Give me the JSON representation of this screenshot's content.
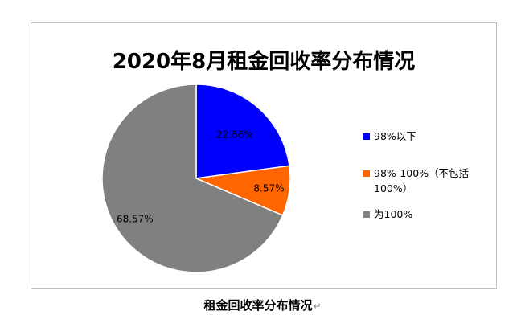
{
  "chart_data": {
    "type": "pie",
    "title": "2020年8月租金回收率分布情况",
    "slices": [
      {
        "name": "98%以下",
        "value": 22.86,
        "label": "22.86%",
        "color": "#0000ff"
      },
      {
        "name": "98%-100%（不包括100%）",
        "value": 8.57,
        "label": "8.57%",
        "color": "#ff6600"
      },
      {
        "name": "为100%",
        "value": 68.57,
        "label": "68.57%",
        "color": "#808080"
      }
    ],
    "legend_position": "right",
    "start_angle_deg": 0,
    "direction": "clockwise"
  },
  "legend": [
    {
      "label": "98%以下",
      "color": "#0000ff"
    },
    {
      "label": "98%-100%（不包括100%）",
      "color": "#ff6600"
    },
    {
      "label": "为100%",
      "color": "#808080"
    }
  ],
  "caption": "租金回收率分布情况",
  "caption_mark": "↵"
}
